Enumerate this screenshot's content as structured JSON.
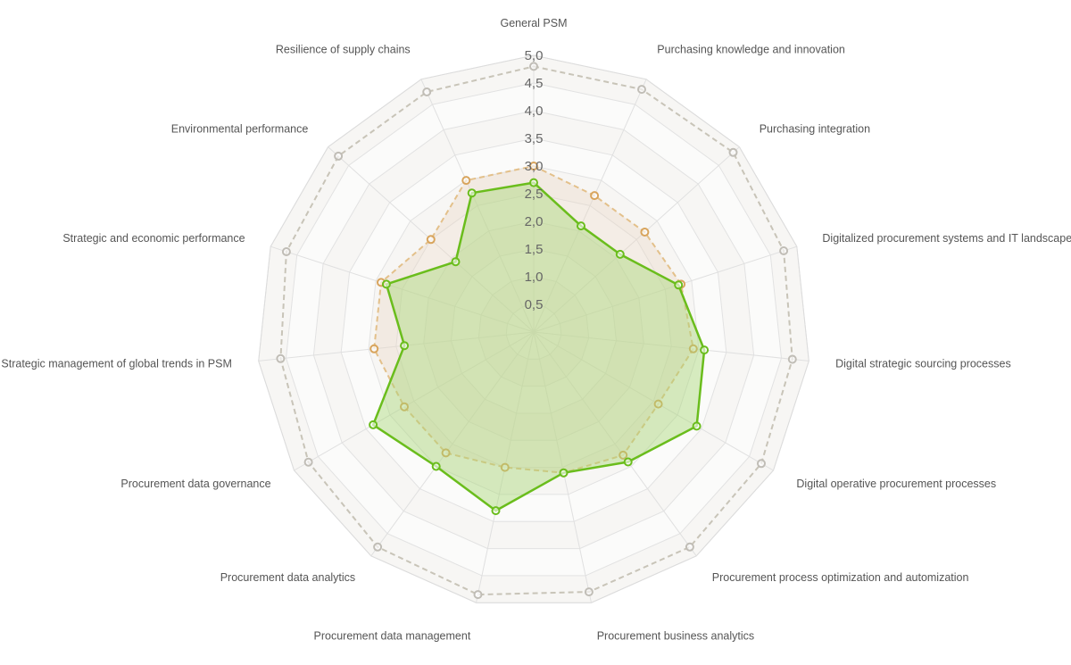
{
  "chart_data": {
    "type": "radar",
    "rmax": 5.0,
    "ticks": [
      "0,5",
      "1,0",
      "1,5",
      "2,0",
      "2,5",
      "3,0",
      "3,5",
      "4,0",
      "4,5",
      "5,0"
    ],
    "tick_values": [
      0.5,
      1.0,
      1.5,
      2.0,
      2.5,
      3.0,
      3.5,
      4.0,
      4.5,
      5.0
    ],
    "categories": [
      "General PSM",
      "Purchasing knowledge and innovation",
      "Purchasing integration",
      "Digitalized procurement systems and IT landscape",
      "Digital strategic sourcing processes",
      "Digital operative procurement processes",
      "Procurement process optimization and automization",
      "Procurement business analytics",
      "Procurement data management",
      "Procurement data analytics",
      "Procurement data governance",
      "Strategic management of global trends in PSM",
      "Strategic and economic performance",
      "Environmental performance",
      "Resilience of supply chains"
    ],
    "series": [
      {
        "color": "#c8c4b8",
        "marker": "#c0bdb6",
        "dash": true,
        "fill": false,
        "values": [
          4.8,
          4.8,
          4.85,
          4.75,
          4.7,
          4.75,
          4.8,
          4.8,
          4.85,
          4.8,
          4.7,
          4.6,
          4.7,
          4.75,
          4.75
        ]
      },
      {
        "color": "#e3c08a",
        "marker": "#d8a45c",
        "dash": true,
        "fill": true,
        "fill_color": "#e9d3bf",
        "values": [
          3.0,
          2.7,
          2.7,
          2.8,
          2.9,
          2.6,
          2.75,
          2.6,
          2.5,
          2.7,
          2.7,
          2.9,
          2.9,
          2.5,
          3.0
        ]
      },
      {
        "color": "#6abd1c",
        "marker": "#6abd1c",
        "dash": false,
        "fill": true,
        "fill_color": "#a8d878",
        "values": [
          2.7,
          2.1,
          2.1,
          2.75,
          3.1,
          3.4,
          2.9,
          2.6,
          3.3,
          3.0,
          3.35,
          2.35,
          2.8,
          1.9,
          2.75
        ]
      }
    ]
  }
}
